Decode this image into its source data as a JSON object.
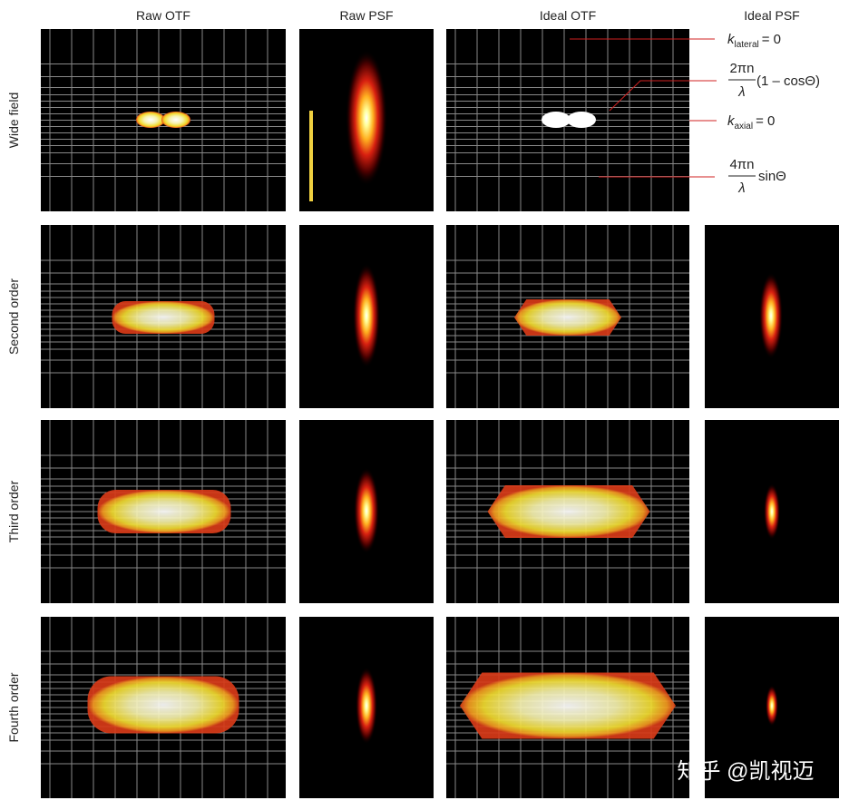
{
  "columns": [
    "Raw OTF",
    "Raw PSF",
    "Ideal OTF",
    "Ideal PSF"
  ],
  "rows": [
    "Wide field",
    "Second order",
    "Third order",
    "Fourth order"
  ],
  "annotations": {
    "k_lateral": {
      "symbol": "k",
      "subscript": "lateral",
      "rest": "= 0"
    },
    "axial_offset": {
      "numerator": "2πn",
      "denominator": "λ",
      "suffix": "(1 – cosΘ)"
    },
    "k_axial": {
      "symbol": "k",
      "subscript": "axial",
      "rest": "= 0"
    },
    "axial_extent": {
      "numerator": "4πn",
      "denominator": "λ",
      "suffix": "sinΘ"
    }
  },
  "watermark": "知乎 @凯视迈"
}
